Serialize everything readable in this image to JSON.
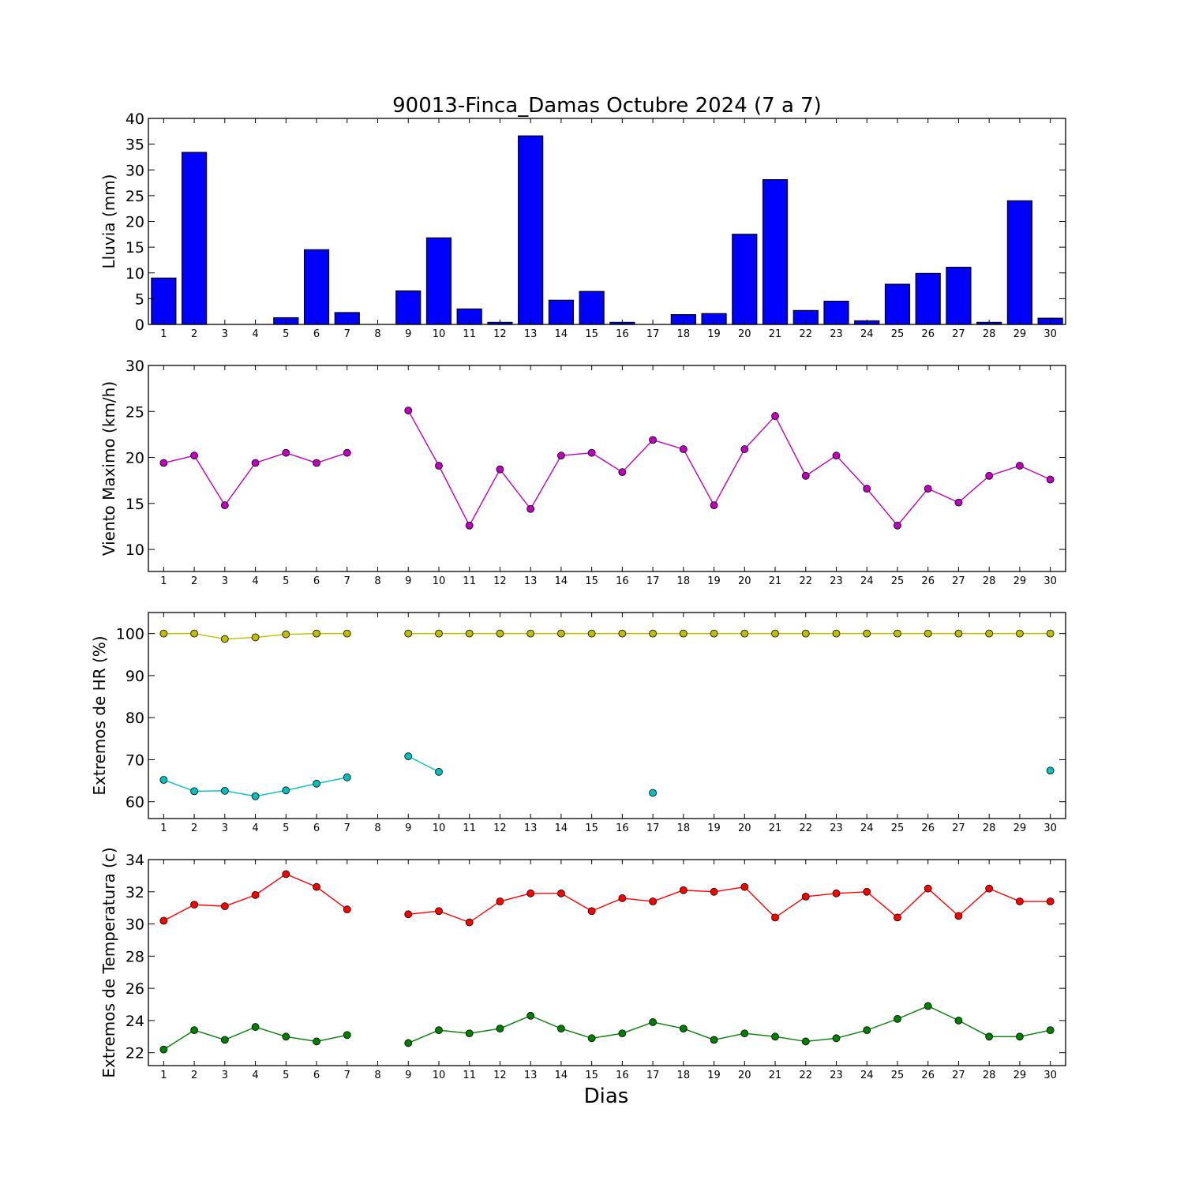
{
  "title": "90013-Finca_Damas Octubre 2024  (7 a 7)",
  "xlabel": "Dias",
  "chart_data": [
    {
      "type": "bar",
      "ylabel": "Lluvia (mm)",
      "ylim": [
        0,
        40
      ],
      "yticks": [
        0,
        5,
        10,
        15,
        20,
        25,
        30,
        35,
        40
      ],
      "categories": [
        1,
        2,
        3,
        4,
        5,
        6,
        7,
        8,
        9,
        10,
        11,
        12,
        13,
        14,
        15,
        16,
        17,
        18,
        19,
        20,
        21,
        22,
        23,
        24,
        25,
        26,
        27,
        28,
        29,
        30
      ],
      "values": [
        9.0,
        33.4,
        0.0,
        0.0,
        1.3,
        14.5,
        2.3,
        0.0,
        6.5,
        16.8,
        3.0,
        0.4,
        36.6,
        4.7,
        6.4,
        0.4,
        0.0,
        1.9,
        2.1,
        17.5,
        28.1,
        2.7,
        4.5,
        0.7,
        7.8,
        9.9,
        11.1,
        0.4,
        24.0,
        1.2
      ],
      "color": "#0000ff"
    },
    {
      "type": "line",
      "ylabel": "Viento Maximo (km/h)",
      "ylim": [
        7.6,
        30
      ],
      "yticks": [
        10,
        15,
        20,
        25,
        30
      ],
      "x": [
        1,
        2,
        3,
        4,
        5,
        6,
        7,
        8,
        9,
        10,
        11,
        12,
        13,
        14,
        15,
        16,
        17,
        18,
        19,
        20,
        21,
        22,
        23,
        24,
        25,
        26,
        27,
        28,
        29,
        30
      ],
      "series": [
        {
          "color": "#bf00bf",
          "values": [
            19.4,
            20.2,
            14.8,
            19.4,
            20.5,
            19.4,
            20.5,
            null,
            25.1,
            19.1,
            12.6,
            18.7,
            14.4,
            20.2,
            20.5,
            18.4,
            21.9,
            20.9,
            14.8,
            20.9,
            24.5,
            18.0,
            20.2,
            16.6,
            12.6,
            16.6,
            15.1,
            18.0,
            19.1,
            17.6
          ]
        }
      ]
    },
    {
      "type": "line",
      "ylabel": "Extremos de HR (%)",
      "ylim": [
        56,
        105
      ],
      "yticks": [
        60,
        70,
        80,
        90,
        100
      ],
      "x": [
        1,
        2,
        3,
        4,
        5,
        6,
        7,
        8,
        9,
        10,
        11,
        12,
        13,
        14,
        15,
        16,
        17,
        18,
        19,
        20,
        21,
        22,
        23,
        24,
        25,
        26,
        27,
        28,
        29,
        30
      ],
      "series": [
        {
          "color": "#bfbf00",
          "values": [
            100,
            100,
            98.7,
            99.1,
            99.8,
            100,
            100,
            null,
            100,
            100,
            100,
            100,
            100,
            100,
            100,
            100,
            100,
            100,
            100,
            100,
            100,
            100,
            100,
            100,
            100,
            100,
            100,
            100,
            100,
            100
          ]
        },
        {
          "color": "#00bfbf",
          "values": [
            65.2,
            62.5,
            62.6,
            61.3,
            62.7,
            64.3,
            65.8,
            null,
            70.8,
            67.1,
            null,
            null,
            null,
            null,
            null,
            null,
            62.1,
            null,
            null,
            null,
            null,
            null,
            null,
            null,
            null,
            null,
            null,
            null,
            null,
            67.4
          ]
        }
      ]
    },
    {
      "type": "line",
      "ylabel": "Extremos de Temperatura (c)",
      "ylim": [
        21.2,
        34
      ],
      "yticks": [
        22,
        24,
        26,
        28,
        30,
        32,
        34
      ],
      "x": [
        1,
        2,
        3,
        4,
        5,
        6,
        7,
        8,
        9,
        10,
        11,
        12,
        13,
        14,
        15,
        16,
        17,
        18,
        19,
        20,
        21,
        22,
        23,
        24,
        25,
        26,
        27,
        28,
        29,
        30
      ],
      "series": [
        {
          "color": "#ff0000",
          "values": [
            30.2,
            31.2,
            31.1,
            31.8,
            33.1,
            32.3,
            30.9,
            null,
            30.6,
            30.8,
            30.1,
            31.4,
            31.9,
            31.9,
            30.8,
            31.6,
            31.4,
            32.1,
            32.0,
            32.3,
            30.4,
            31.7,
            31.9,
            32.0,
            30.4,
            32.2,
            30.5,
            32.2,
            31.4,
            31.4
          ]
        },
        {
          "color": "#008000",
          "values": [
            22.2,
            23.4,
            22.8,
            23.6,
            23.0,
            22.7,
            23.1,
            null,
            22.6,
            23.4,
            23.2,
            23.5,
            24.3,
            23.5,
            22.9,
            23.2,
            23.9,
            23.5,
            22.8,
            23.2,
            23.0,
            22.7,
            22.9,
            23.4,
            24.1,
            24.9,
            24.0,
            23.0,
            23.0,
            23.4
          ]
        }
      ]
    }
  ]
}
